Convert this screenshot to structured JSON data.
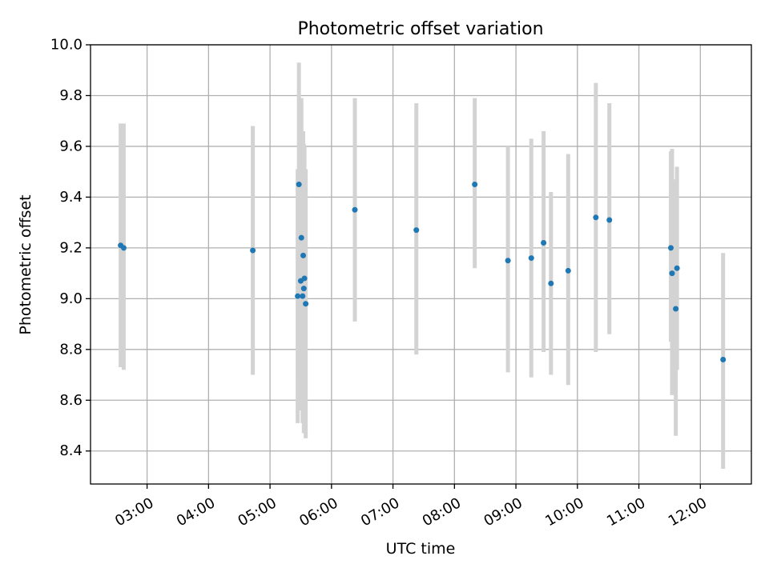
{
  "chart_data": {
    "type": "scatter",
    "title": "Photometric offset variation",
    "xlabel": "UTC time",
    "ylabel": "Photometric offset",
    "grid": true,
    "xlim_hours": [
      2.08,
      12.83
    ],
    "ylim": [
      8.27,
      10.0
    ],
    "x_ticks": [
      {
        "hour": 3,
        "label": "03:00"
      },
      {
        "hour": 4,
        "label": "04:00"
      },
      {
        "hour": 5,
        "label": "05:00"
      },
      {
        "hour": 6,
        "label": "06:00"
      },
      {
        "hour": 7,
        "label": "07:00"
      },
      {
        "hour": 8,
        "label": "08:00"
      },
      {
        "hour": 9,
        "label": "09:00"
      },
      {
        "hour": 10,
        "label": "10:00"
      },
      {
        "hour": 11,
        "label": "11:00"
      },
      {
        "hour": 12,
        "label": "12:00"
      }
    ],
    "y_ticks": [
      {
        "value": 8.4,
        "label": "8.4"
      },
      {
        "value": 8.6,
        "label": "8.6"
      },
      {
        "value": 8.8,
        "label": "8.8"
      },
      {
        "value": 9.0,
        "label": "9.0"
      },
      {
        "value": 9.2,
        "label": "9.2"
      },
      {
        "value": 9.4,
        "label": "9.4"
      },
      {
        "value": 9.6,
        "label": "9.6"
      },
      {
        "value": 9.8,
        "label": "9.8"
      },
      {
        "value": 10.0,
        "label": "10.0"
      }
    ],
    "marker_color": "#1f77b4",
    "errorbar_color": "#d3d3d3",
    "points": [
      {
        "hour": 2.57,
        "y": 9.21,
        "lo": 8.73,
        "hi": 9.69
      },
      {
        "hour": 2.62,
        "y": 9.2,
        "lo": 8.72,
        "hi": 9.69
      },
      {
        "hour": 4.72,
        "y": 9.19,
        "lo": 8.7,
        "hi": 9.68
      },
      {
        "hour": 5.45,
        "y": 9.01,
        "lo": 8.51,
        "hi": 9.51
      },
      {
        "hour": 5.47,
        "y": 9.45,
        "lo": 8.97,
        "hi": 9.93
      },
      {
        "hour": 5.5,
        "y": 9.07,
        "lo": 8.56,
        "hi": 9.58
      },
      {
        "hour": 5.51,
        "y": 9.24,
        "lo": 8.7,
        "hi": 9.79
      },
      {
        "hour": 5.53,
        "y": 9.01,
        "lo": 8.51,
        "hi": 9.51
      },
      {
        "hour": 5.54,
        "y": 9.17,
        "lo": 8.67,
        "hi": 9.66
      },
      {
        "hour": 5.55,
        "y": 9.04,
        "lo": 8.47,
        "hi": 9.61
      },
      {
        "hour": 5.56,
        "y": 9.08,
        "lo": 8.55,
        "hi": 9.6
      },
      {
        "hour": 5.58,
        "y": 8.98,
        "lo": 8.45,
        "hi": 9.51
      },
      {
        "hour": 6.38,
        "y": 9.35,
        "lo": 8.91,
        "hi": 9.79
      },
      {
        "hour": 7.38,
        "y": 9.27,
        "lo": 8.78,
        "hi": 9.77
      },
      {
        "hour": 8.33,
        "y": 9.45,
        "lo": 9.12,
        "hi": 9.79
      },
      {
        "hour": 8.87,
        "y": 9.15,
        "lo": 8.71,
        "hi": 9.6
      },
      {
        "hour": 9.25,
        "y": 9.16,
        "lo": 8.69,
        "hi": 9.63
      },
      {
        "hour": 9.45,
        "y": 9.22,
        "lo": 8.79,
        "hi": 9.66
      },
      {
        "hour": 9.57,
        "y": 9.06,
        "lo": 8.7,
        "hi": 9.42
      },
      {
        "hour": 9.85,
        "y": 9.11,
        "lo": 8.66,
        "hi": 9.57
      },
      {
        "hour": 10.3,
        "y": 9.32,
        "lo": 8.79,
        "hi": 9.85
      },
      {
        "hour": 10.52,
        "y": 9.31,
        "lo": 8.86,
        "hi": 9.77
      },
      {
        "hour": 11.52,
        "y": 9.2,
        "lo": 8.83,
        "hi": 9.58
      },
      {
        "hour": 11.54,
        "y": 9.1,
        "lo": 8.62,
        "hi": 9.59
      },
      {
        "hour": 11.6,
        "y": 8.96,
        "lo": 8.46,
        "hi": 9.47
      },
      {
        "hour": 11.62,
        "y": 9.12,
        "lo": 8.72,
        "hi": 9.52
      },
      {
        "hour": 12.37,
        "y": 8.76,
        "lo": 8.33,
        "hi": 9.18
      }
    ]
  }
}
